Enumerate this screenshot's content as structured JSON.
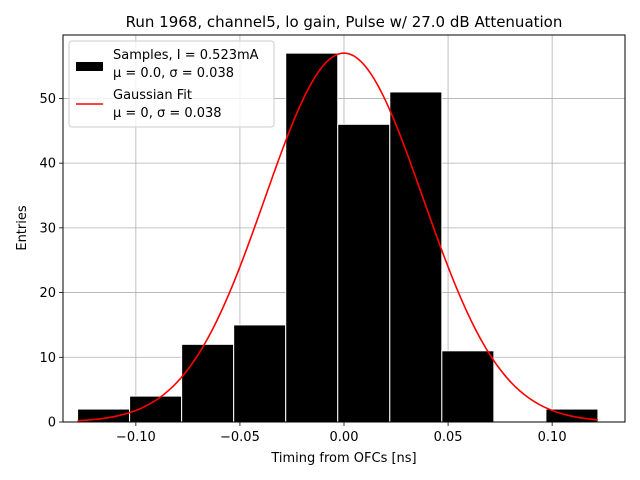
{
  "chart_data": {
    "type": "bar",
    "title": "Run 1968, channel5, lo gain, Pulse w/ 27.0 dB Attenuation",
    "xlabel": "Timing from OFCs [ns]",
    "ylabel": "Entries",
    "xlim": [
      -0.135,
      0.135
    ],
    "ylim": [
      0,
      59.8
    ],
    "grid": true,
    "x_ticks": [
      -0.1,
      -0.05,
      0.0,
      0.05,
      0.1
    ],
    "x_tick_labels": [
      "−0.10",
      "−0.05",
      "0.00",
      "0.05",
      "0.10"
    ],
    "y_ticks": [
      0,
      10,
      20,
      30,
      40,
      50
    ],
    "y_tick_labels": [
      "0",
      "10",
      "20",
      "30",
      "40",
      "50"
    ],
    "histogram": {
      "name": "Samples",
      "color": "#000000",
      "edge_color": "#ffffff",
      "bin_edges": [
        -0.128,
        -0.103,
        -0.078,
        -0.053,
        -0.028,
        -0.003,
        0.022,
        0.047,
        0.072,
        0.097,
        0.122
      ],
      "counts": [
        2,
        4,
        12,
        15,
        57,
        46,
        51,
        11,
        0,
        2
      ]
    },
    "fit": {
      "name": "Gaussian Fit",
      "color": "#ff0000",
      "mu": 0.0,
      "sigma": 0.038,
      "amplitude": 57,
      "x_range": [
        -0.128,
        0.122
      ]
    },
    "legend": {
      "location": "upper-left",
      "entries": [
        {
          "kind": "bar",
          "line1": "Samples, I = 0.523mA",
          "line2": "μ = 0.0, σ = 0.038",
          "color": "#000000"
        },
        {
          "kind": "line",
          "line1": "Gaussian Fit",
          "line2": "μ = 0, σ = 0.038",
          "color": "#ff0000"
        }
      ]
    }
  }
}
